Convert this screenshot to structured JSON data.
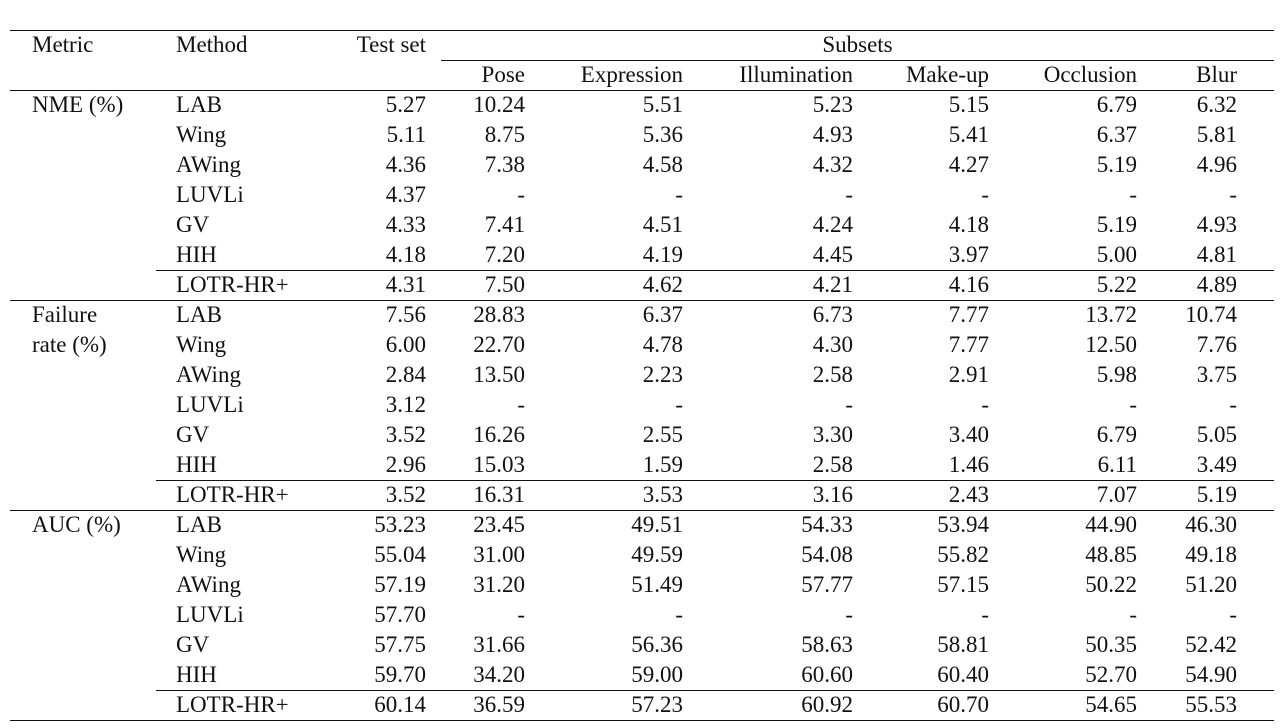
{
  "header": {
    "metric": "Metric",
    "method": "Method",
    "test_set": "Test set",
    "subsets": "Subsets",
    "subset_names": [
      "Pose",
      "Expression",
      "Illumination",
      "Make-up",
      "Occlusion",
      "Blur"
    ]
  },
  "groups": [
    {
      "metric_lines": [
        "NME (%)"
      ],
      "rows": [
        {
          "method": "LAB",
          "values": [
            "5.27",
            "10.24",
            "5.51",
            "5.23",
            "5.15",
            "6.79",
            "6.32"
          ]
        },
        {
          "method": "Wing",
          "values": [
            "5.11",
            "8.75",
            "5.36",
            "4.93",
            "5.41",
            "6.37",
            "5.81"
          ]
        },
        {
          "method": "AWing",
          "values": [
            "4.36",
            "7.38",
            "4.58",
            "4.32",
            "4.27",
            "5.19",
            "4.96"
          ]
        },
        {
          "method": "LUVLi",
          "values": [
            "4.37",
            "-",
            "-",
            "-",
            "-",
            "-",
            "-"
          ]
        },
        {
          "method": "GV",
          "values": [
            "4.33",
            "7.41",
            "4.51",
            "4.24",
            "4.18",
            "5.19",
            "4.93"
          ]
        },
        {
          "method": "HIH",
          "values": [
            "4.18",
            "7.20",
            "4.19",
            "4.45",
            "3.97",
            "5.00",
            "4.81"
          ]
        },
        {
          "method": "LOTR-HR+",
          "values": [
            "4.31",
            "7.50",
            "4.62",
            "4.21",
            "4.16",
            "5.22",
            "4.89"
          ]
        }
      ]
    },
    {
      "metric_lines": [
        "Failure",
        "rate (%)"
      ],
      "rows": [
        {
          "method": "LAB",
          "values": [
            "7.56",
            "28.83",
            "6.37",
            "6.73",
            "7.77",
            "13.72",
            "10.74"
          ]
        },
        {
          "method": "Wing",
          "values": [
            "6.00",
            "22.70",
            "4.78",
            "4.30",
            "7.77",
            "12.50",
            "7.76"
          ]
        },
        {
          "method": "AWing",
          "values": [
            "2.84",
            "13.50",
            "2.23",
            "2.58",
            "2.91",
            "5.98",
            "3.75"
          ]
        },
        {
          "method": "LUVLi",
          "values": [
            "3.12",
            "-",
            "-",
            "-",
            "-",
            "-",
            "-"
          ]
        },
        {
          "method": "GV",
          "values": [
            "3.52",
            "16.26",
            "2.55",
            "3.30",
            "3.40",
            "6.79",
            "5.05"
          ]
        },
        {
          "method": "HIH",
          "values": [
            "2.96",
            "15.03",
            "1.59",
            "2.58",
            "1.46",
            "6.11",
            "3.49"
          ]
        },
        {
          "method": "LOTR-HR+",
          "values": [
            "3.52",
            "16.31",
            "3.53",
            "3.16",
            "2.43",
            "7.07",
            "5.19"
          ]
        }
      ]
    },
    {
      "metric_lines": [
        "AUC (%)"
      ],
      "rows": [
        {
          "method": "LAB",
          "values": [
            "53.23",
            "23.45",
            "49.51",
            "54.33",
            "53.94",
            "44.90",
            "46.30"
          ]
        },
        {
          "method": "Wing",
          "values": [
            "55.04",
            "31.00",
            "49.59",
            "54.08",
            "55.82",
            "48.85",
            "49.18"
          ]
        },
        {
          "method": "AWing",
          "values": [
            "57.19",
            "31.20",
            "51.49",
            "57.77",
            "57.15",
            "50.22",
            "51.20"
          ]
        },
        {
          "method": "LUVLi",
          "values": [
            "57.70",
            "-",
            "-",
            "-",
            "-",
            "-",
            "-"
          ]
        },
        {
          "method": "GV",
          "values": [
            "57.75",
            "31.66",
            "56.36",
            "58.63",
            "58.81",
            "50.35",
            "52.42"
          ]
        },
        {
          "method": "HIH",
          "values": [
            "59.70",
            "34.20",
            "59.00",
            "60.60",
            "60.40",
            "52.70",
            "54.90"
          ]
        },
        {
          "method": "LOTR-HR+",
          "values": [
            "60.14",
            "36.59",
            "57.23",
            "60.92",
            "60.70",
            "54.65",
            "55.53"
          ]
        }
      ]
    }
  ]
}
